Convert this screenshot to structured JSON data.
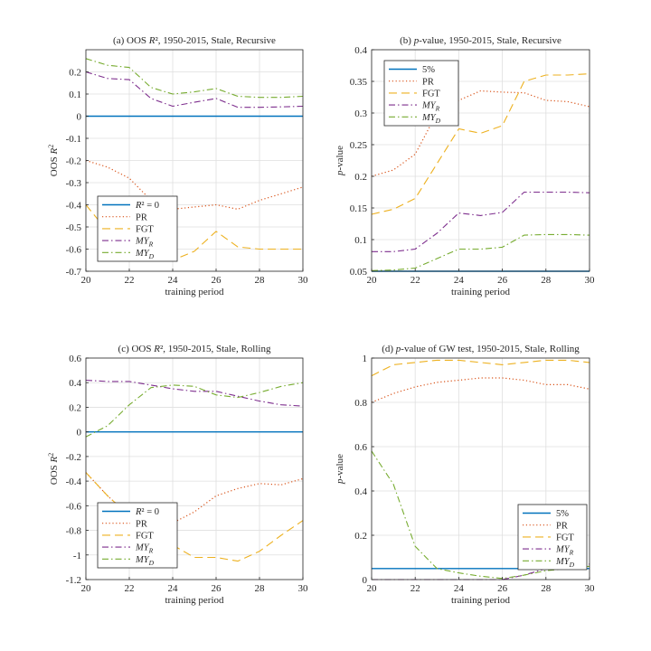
{
  "colors": {
    "zero": "#0072BD",
    "PR": "#D95319",
    "FGT": "#EDB120",
    "MY_R": "#7E2F8E",
    "MY_D": "#77AC30"
  },
  "chart_data": [
    {
      "type": "line",
      "title": "(a) OOS R², 1950-2015, Stale, Recursive",
      "xlabel": "training period",
      "ylabel": "OOS R²",
      "xlim": [
        20,
        30
      ],
      "ylim": [
        -0.7,
        0.3
      ],
      "xticks": [
        20,
        22,
        24,
        26,
        28,
        30
      ],
      "yticks": [
        -0.7,
        -0.6,
        -0.5,
        -0.4,
        -0.3,
        -0.2,
        -0.1,
        0,
        0.1,
        0.2
      ],
      "ytick_labels": [
        "-0.7",
        "-0.6",
        "-0.5",
        "-0.4",
        "-0.3",
        "-0.2",
        "-0.1",
        "0",
        "0.1",
        "0.2"
      ],
      "grid": true,
      "legend_position": "bottom-left",
      "x": [
        20,
        21,
        22,
        23,
        24,
        25,
        26,
        27,
        28,
        29,
        30
      ],
      "series": [
        {
          "name": "R² = 0",
          "key": "zero",
          "values": [
            0,
            0,
            0,
            0,
            0,
            0,
            0,
            0,
            0,
            0,
            0
          ]
        },
        {
          "name": "PR",
          "key": "PR",
          "values": [
            -0.2,
            -0.23,
            -0.28,
            -0.38,
            -0.42,
            -0.41,
            -0.4,
            -0.42,
            -0.38,
            -0.35,
            -0.32
          ]
        },
        {
          "name": "FGT",
          "key": "FGT",
          "values": [
            -0.4,
            -0.52,
            -0.57,
            -0.61,
            -0.65,
            -0.61,
            -0.52,
            -0.59,
            -0.6,
            -0.6,
            -0.6
          ]
        },
        {
          "name": "MY_R",
          "key": "MY_R",
          "values": [
            0.2,
            0.17,
            0.165,
            0.08,
            0.045,
            0.063,
            0.08,
            0.04,
            0.04,
            0.042,
            0.045
          ]
        },
        {
          "name": "MY_D",
          "key": "MY_D",
          "values": [
            0.26,
            0.23,
            0.22,
            0.13,
            0.1,
            0.11,
            0.125,
            0.09,
            0.085,
            0.085,
            0.09
          ]
        }
      ]
    },
    {
      "type": "line",
      "title": "(b) p-value, 1950-2015, Stale, Recursive",
      "xlabel": "training period",
      "ylabel": "p-value",
      "xlim": [
        20,
        30
      ],
      "ylim": [
        0.05,
        0.4
      ],
      "xticks": [
        20,
        22,
        24,
        26,
        28,
        30
      ],
      "yticks": [
        0.05,
        0.1,
        0.15,
        0.2,
        0.25,
        0.3,
        0.35,
        0.4
      ],
      "ytick_labels": [
        "0.05",
        "0.1",
        "0.15",
        "0.2",
        "0.25",
        "0.3",
        "0.35",
        "0.4"
      ],
      "grid": true,
      "legend_position": "top-left",
      "x": [
        20,
        21,
        22,
        23,
        24,
        25,
        26,
        27,
        28,
        29,
        30
      ],
      "series": [
        {
          "name": "5%",
          "key": "zero",
          "values": [
            0.05,
            0.05,
            0.05,
            0.05,
            0.05,
            0.05,
            0.05,
            0.05,
            0.05,
            0.05,
            0.05
          ]
        },
        {
          "name": "PR",
          "key": "PR",
          "values": [
            0.2,
            0.21,
            0.235,
            0.3,
            0.32,
            0.335,
            0.333,
            0.332,
            0.32,
            0.318,
            0.31
          ]
        },
        {
          "name": "FGT",
          "key": "FGT",
          "values": [
            0.14,
            0.148,
            0.165,
            0.22,
            0.275,
            0.268,
            0.28,
            0.35,
            0.36,
            0.36,
            0.362
          ]
        },
        {
          "name": "MY_R",
          "key": "MY_R",
          "values": [
            0.081,
            0.081,
            0.085,
            0.11,
            0.142,
            0.138,
            0.143,
            0.175,
            0.175,
            0.175,
            0.174
          ]
        },
        {
          "name": "MY_D",
          "key": "MY_D",
          "values": [
            0.051,
            0.052,
            0.055,
            0.07,
            0.085,
            0.085,
            0.088,
            0.107,
            0.108,
            0.108,
            0.107
          ]
        }
      ]
    },
    {
      "type": "line",
      "title": "(c) OOS R², 1950-2015, Stale, Rolling",
      "xlabel": "training period",
      "ylabel": "OOS R²",
      "xlim": [
        20,
        30
      ],
      "ylim": [
        -1.2,
        0.6
      ],
      "xticks": [
        20,
        22,
        24,
        26,
        28,
        30
      ],
      "yticks": [
        -1.2,
        -1,
        -0.8,
        -0.6,
        -0.4,
        -0.2,
        0,
        0.2,
        0.4,
        0.6
      ],
      "ytick_labels": [
        "-1.2",
        "-1",
        "-0.8",
        "-0.6",
        "-0.4",
        "-0.2",
        "0",
        "0.2",
        "0.4",
        "0.6"
      ],
      "grid": true,
      "legend_position": "bottom-left",
      "x": [
        20,
        21,
        22,
        23,
        24,
        25,
        26,
        27,
        28,
        29,
        30
      ],
      "series": [
        {
          "name": "R² = 0",
          "key": "zero",
          "values": [
            0,
            0,
            0,
            0,
            0,
            0,
            0,
            0,
            0,
            0,
            0
          ]
        },
        {
          "name": "PR",
          "key": "PR",
          "values": [
            -0.33,
            -0.52,
            -0.68,
            -0.78,
            -0.74,
            -0.65,
            -0.52,
            -0.46,
            -0.42,
            -0.43,
            -0.38
          ]
        },
        {
          "name": "FGT",
          "key": "FGT",
          "values": [
            -0.33,
            -0.52,
            -0.68,
            -0.83,
            -0.92,
            -1.02,
            -1.02,
            -1.05,
            -0.97,
            -0.84,
            -0.72
          ]
        },
        {
          "name": "MY_R",
          "key": "MY_R",
          "values": [
            0.42,
            0.41,
            0.41,
            0.38,
            0.35,
            0.33,
            0.33,
            0.29,
            0.25,
            0.22,
            0.21
          ]
        },
        {
          "name": "MY_D",
          "key": "MY_D",
          "values": [
            -0.04,
            0.05,
            0.22,
            0.36,
            0.38,
            0.37,
            0.3,
            0.28,
            0.32,
            0.37,
            0.4
          ]
        }
      ]
    },
    {
      "type": "line",
      "title": "(d) p-value of GW test, 1950-2015, Stale, Rolling",
      "xlabel": "training period",
      "ylabel": "p-value",
      "xlim": [
        20,
        30
      ],
      "ylim": [
        0,
        1
      ],
      "xticks": [
        20,
        22,
        24,
        26,
        28,
        30
      ],
      "yticks": [
        0,
        0.2,
        0.4,
        0.6,
        0.8,
        1
      ],
      "ytick_labels": [
        "0",
        "0.2",
        "0.4",
        "0.6",
        "0.8",
        "1"
      ],
      "grid": true,
      "legend_position": "bottom-right",
      "x": [
        20,
        21,
        22,
        23,
        24,
        25,
        26,
        27,
        28,
        29,
        30
      ],
      "series": [
        {
          "name": "5%",
          "key": "zero",
          "values": [
            0.05,
            0.05,
            0.05,
            0.05,
            0.05,
            0.05,
            0.05,
            0.05,
            0.05,
            0.05,
            0.05
          ]
        },
        {
          "name": "PR",
          "key": "PR",
          "values": [
            0.8,
            0.84,
            0.87,
            0.89,
            0.9,
            0.91,
            0.91,
            0.9,
            0.88,
            0.88,
            0.86
          ]
        },
        {
          "name": "FGT",
          "key": "FGT",
          "values": [
            0.92,
            0.97,
            0.98,
            0.99,
            0.99,
            0.98,
            0.97,
            0.98,
            0.99,
            0.99,
            0.98
          ]
        },
        {
          "name": "MY_R",
          "key": "MY_R",
          "values": [
            0,
            0,
            0,
            0,
            0,
            0,
            0,
            0.02,
            0.05,
            0.06,
            0.07
          ]
        },
        {
          "name": "MY_D",
          "key": "MY_D",
          "values": [
            0.58,
            0.43,
            0.15,
            0.05,
            0.03,
            0.015,
            0.005,
            0.02,
            0.04,
            0.05,
            0.06
          ]
        }
      ]
    }
  ]
}
